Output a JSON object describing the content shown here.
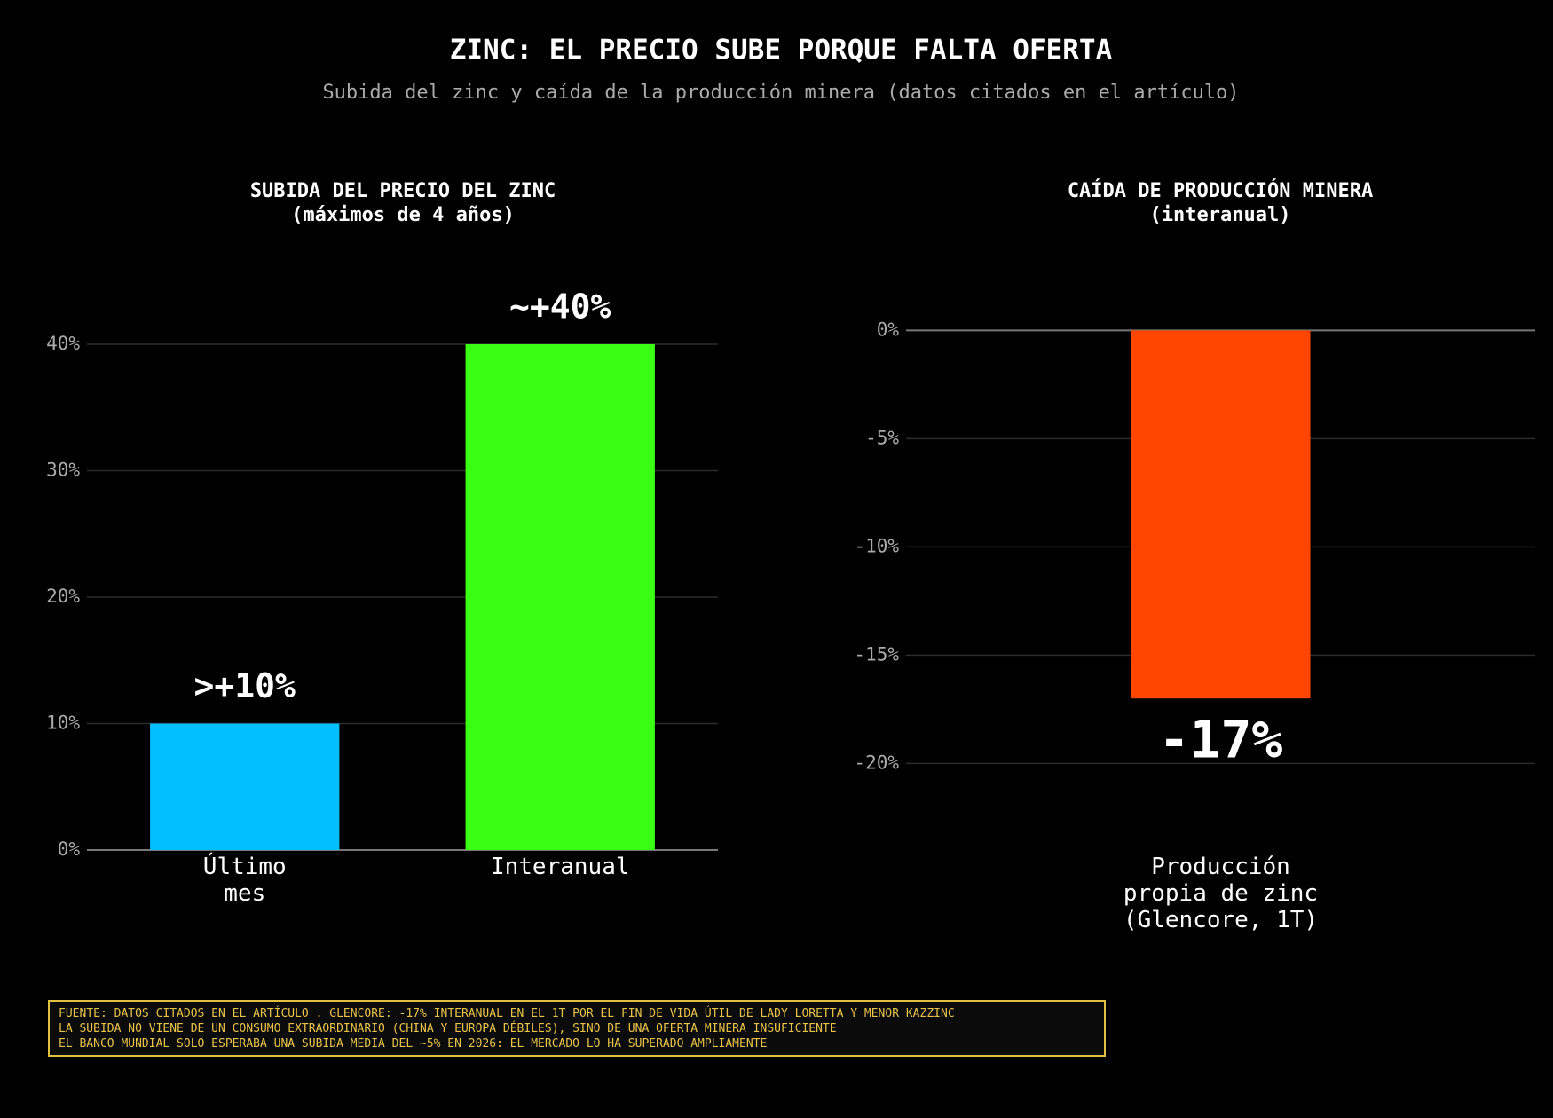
{
  "title": "ZINC: EL PRECIO SUBE PORQUE FALTA OFERTA",
  "subtitle": "Subida del zinc y caída de la producción minera (datos citados en el artículo)",
  "notes": [
    "FUENTE: DATOS CITADOS EN EL ARTÍCULO . GLENCORE: -17% INTERANUAL EN EL 1T POR EL FIN DE VIDA ÚTIL DE LADY LORETTA Y MENOR KAZZINC",
    "LA SUBIDA NO VIENE DE UN CONSUMO EXTRAORDINARIO (CHINA Y EUROPA DÉBILES), SINO DE UNA OFERTA MINERA INSUFICIENTE",
    "EL BANCO MUNDIAL SOLO ESPERABA UNA SUBIDA MEDIA DEL ~5% EN 2026: EL MERCADO LO HA SUPERADO AMPLIAMENTE"
  ],
  "chart_data": [
    {
      "type": "bar",
      "title": "SUBIDA DEL PRECIO DEL ZINC",
      "subtitle": "(máximos de 4 años)",
      "categories": [
        "Último\nmes",
        "Interanual"
      ],
      "values": [
        10,
        40
      ],
      "value_labels": [
        ">+10%",
        "~+40%"
      ],
      "colors": [
        "#00bfff",
        "#39ff14"
      ],
      "ylim": [
        0,
        44
      ],
      "yticks": [
        {
          "value": 0,
          "label": "0%"
        },
        {
          "value": 10,
          "label": "10%"
        },
        {
          "value": 20,
          "label": "20%"
        },
        {
          "value": 30,
          "label": "30%"
        },
        {
          "value": 40,
          "label": "40%"
        }
      ],
      "grid": true
    },
    {
      "type": "bar",
      "title": "CAÍDA DE PRODUCCIÓN MINERA",
      "subtitle": "(interanual)",
      "categories": [
        "Producción\npropia de zinc\n(Glencore, 1T)"
      ],
      "values": [
        -17
      ],
      "value_labels": [
        "-17%"
      ],
      "colors": [
        "#ff4500"
      ],
      "ylim": [
        -24,
        1
      ],
      "yticks": [
        {
          "value": 0,
          "label": "0%"
        },
        {
          "value": -5,
          "label": "-5%"
        },
        {
          "value": -10,
          "label": "-10%"
        },
        {
          "value": -15,
          "label": "-15%"
        },
        {
          "value": -20,
          "label": "-20%"
        }
      ],
      "grid": true
    }
  ]
}
